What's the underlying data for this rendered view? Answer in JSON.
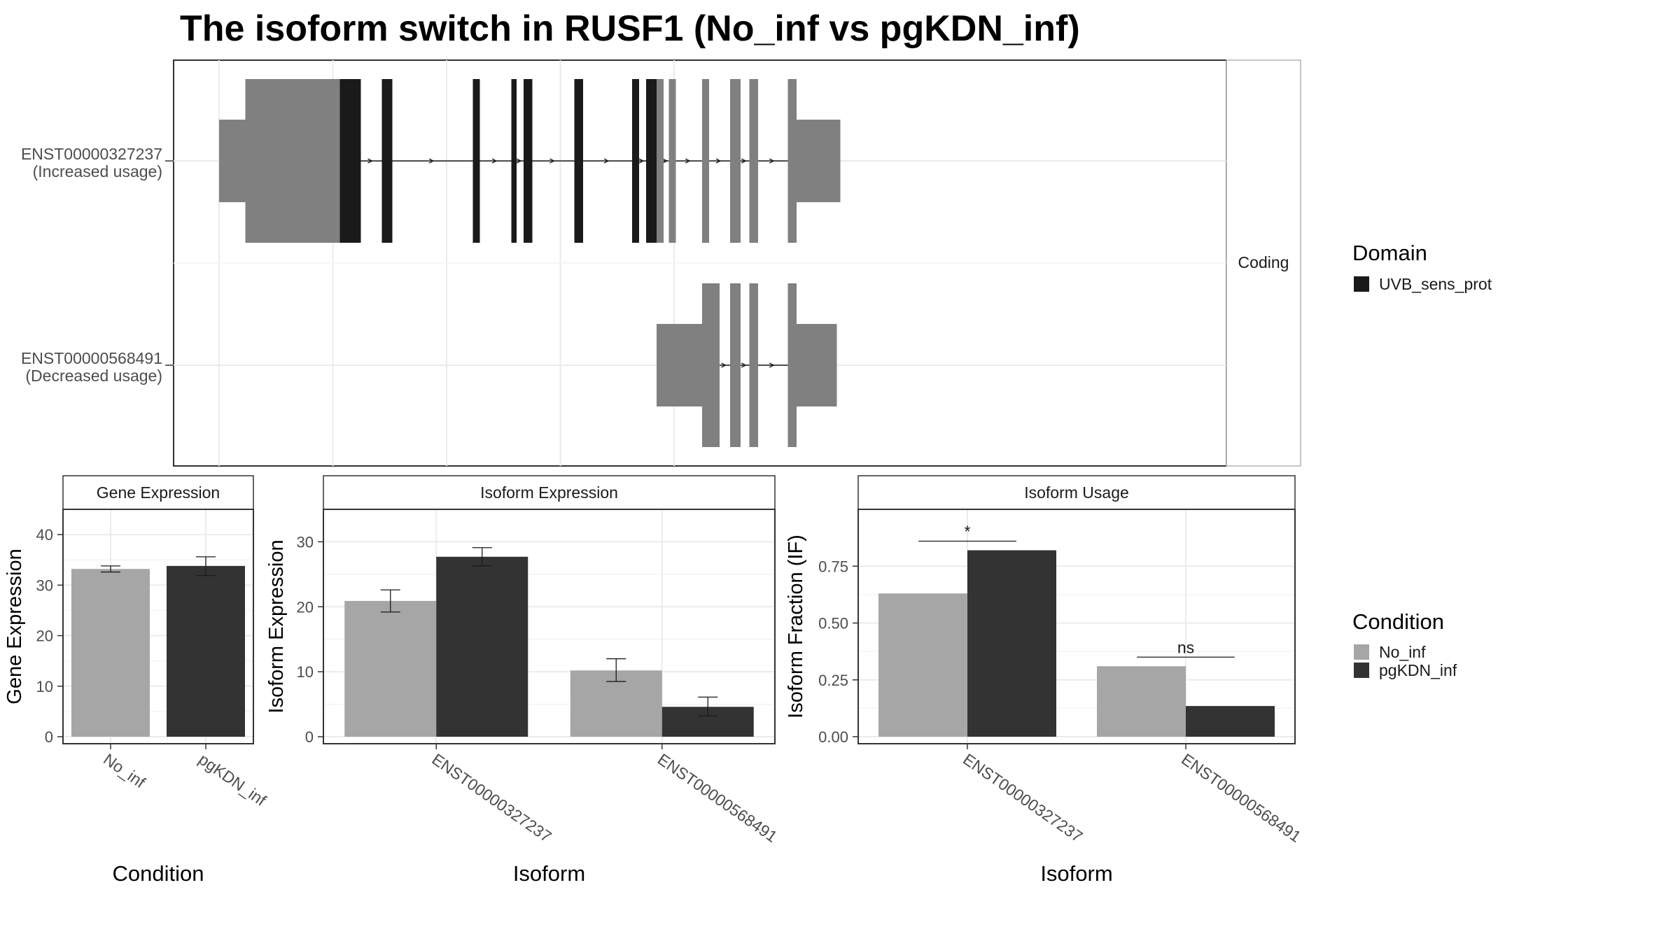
{
  "title": "The isoform switch in RUSF1 (No_inf vs pgKDN_inf)",
  "colors": {
    "domain": "#1a1a1a",
    "exon_noncoding": "#808080",
    "no_inf": "#a6a6a6",
    "pgkdn_inf": "#333333",
    "grid": "#ebebeb",
    "panel_border": "#333333",
    "strip_fill": "#ffffff"
  },
  "chart_data": [
    {
      "type": "gene-structure",
      "facet_label": "Coding",
      "transcripts": [
        {
          "id": "ENST00000327237",
          "usage": "(Increased usage)",
          "exons": [
            {
              "start": 0,
              "end": 15,
              "kind": "utr"
            },
            {
              "start": 15,
              "end": 69,
              "kind": "cds"
            },
            {
              "start": 69,
              "end": 81,
              "kind": "domain"
            },
            {
              "start": 93,
              "end": 99,
              "kind": "domain"
            },
            {
              "start": 145,
              "end": 149,
              "kind": "domain"
            },
            {
              "start": 167,
              "end": 170,
              "kind": "domain"
            },
            {
              "start": 174,
              "end": 179,
              "kind": "domain"
            },
            {
              "start": 203,
              "end": 208,
              "kind": "domain"
            },
            {
              "start": 236,
              "end": 240,
              "kind": "domain"
            },
            {
              "start": 244,
              "end": 250,
              "kind": "domain"
            },
            {
              "start": 250,
              "end": 254,
              "kind": "cds"
            },
            {
              "start": 257,
              "end": 261,
              "kind": "cds"
            },
            {
              "start": 276,
              "end": 280,
              "kind": "cds"
            },
            {
              "start": 292,
              "end": 298,
              "kind": "cds"
            },
            {
              "start": 303,
              "end": 308,
              "kind": "cds"
            },
            {
              "start": 325,
              "end": 330,
              "kind": "cds"
            },
            {
              "start": 330,
              "end": 355,
              "kind": "utr"
            }
          ]
        },
        {
          "id": "ENST00000568491",
          "usage": "(Decreased usage)",
          "exons": [
            {
              "start": 250,
              "end": 276,
              "kind": "utr"
            },
            {
              "start": 276,
              "end": 286,
              "kind": "cds"
            },
            {
              "start": 292,
              "end": 298,
              "kind": "cds"
            },
            {
              "start": 303,
              "end": 308,
              "kind": "cds"
            },
            {
              "start": 325,
              "end": 330,
              "kind": "cds"
            },
            {
              "start": 330,
              "end": 353,
              "kind": "utr"
            }
          ]
        }
      ],
      "legend": {
        "title": "Domain",
        "items": [
          {
            "label": "UVB_sens_prot",
            "color": "#1a1a1a"
          }
        ]
      }
    },
    {
      "type": "bar",
      "strip": "Gene Expression",
      "xlabel": "Condition",
      "ylabel": "Gene Expression",
      "ylim": [
        0,
        45
      ],
      "yticks": [
        0,
        10,
        20,
        30,
        40
      ],
      "categories": [
        "No_inf",
        "pgKDN_inf"
      ],
      "values": [
        33.2,
        33.8
      ],
      "errors": [
        [
          32.6,
          33.8
        ],
        [
          31.9,
          35.6
        ]
      ]
    },
    {
      "type": "bar",
      "strip": "Isoform Expression",
      "xlabel": "Isoform",
      "ylabel": "Isoform Expression",
      "ylim": [
        0,
        35
      ],
      "yticks": [
        0,
        10,
        20,
        30
      ],
      "categories": [
        "ENST00000327237",
        "ENST00000568491"
      ],
      "series": [
        {
          "name": "No_inf",
          "values": [
            20.9,
            10.2
          ],
          "errors": [
            [
              19.2,
              22.6
            ],
            [
              8.5,
              12.0
            ]
          ]
        },
        {
          "name": "pgKDN_inf",
          "values": [
            27.7,
            4.6
          ],
          "errors": [
            [
              26.3,
              29.1
            ],
            [
              3.2,
              6.1
            ]
          ]
        }
      ]
    },
    {
      "type": "bar",
      "strip": "Isoform Usage",
      "xlabel": "Isoform",
      "ylabel": "Isoform Fraction (IF)",
      "ylim": [
        0,
        1
      ],
      "yticks": [
        "0.00",
        "0.25",
        "0.50",
        "0.75"
      ],
      "categories": [
        "ENST00000327237",
        "ENST00000568491"
      ],
      "series": [
        {
          "name": "No_inf",
          "values": [
            0.63,
            0.31
          ]
        },
        {
          "name": "pgKDN_inf",
          "values": [
            0.82,
            0.135
          ]
        }
      ],
      "significance": [
        {
          "label": "*",
          "y": 0.86
        },
        {
          "label": "ns",
          "y": 0.35
        }
      ]
    }
  ],
  "legend_condition": {
    "title": "Condition",
    "items": [
      {
        "label": "No_inf",
        "color": "#a6a6a6"
      },
      {
        "label": "pgKDN_inf",
        "color": "#333333"
      }
    ]
  }
}
